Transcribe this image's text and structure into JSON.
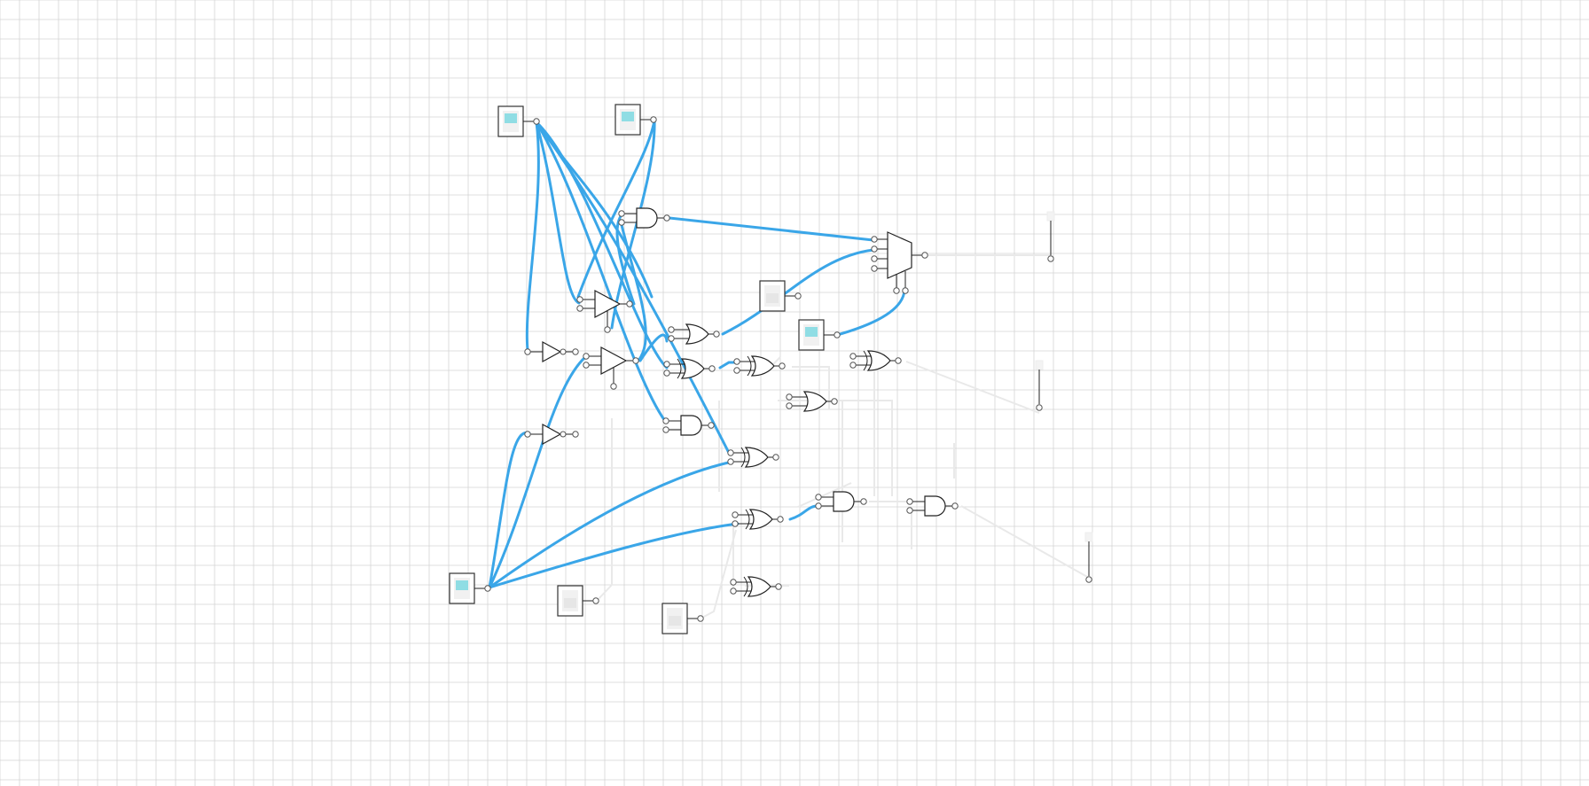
{
  "canvas": {
    "grid": true,
    "background": "#ffffff",
    "grid_color": "#d4d4d4"
  },
  "colors": {
    "wire_active": "#3aa6e8",
    "wire_inactive": "#e9e9e9",
    "switch_on": "#8fdde4",
    "switch_off": "#e6e6e6",
    "gate_stroke": "#222222"
  },
  "switches": [
    {
      "id": "s1",
      "state": "on"
    },
    {
      "id": "s2",
      "state": "on"
    },
    {
      "id": "s3",
      "state": "off"
    },
    {
      "id": "s4",
      "state": "on"
    },
    {
      "id": "s5",
      "state": "on"
    },
    {
      "id": "s6",
      "state": "off"
    },
    {
      "id": "s7",
      "state": "off"
    }
  ],
  "gates": [
    {
      "id": "and1",
      "type": "and"
    },
    {
      "id": "tbuf1",
      "type": "tristate-buffer"
    },
    {
      "id": "tbuf2",
      "type": "tristate-buffer"
    },
    {
      "id": "not1",
      "type": "not"
    },
    {
      "id": "not2",
      "type": "not"
    },
    {
      "id": "or1",
      "type": "or"
    },
    {
      "id": "xor1",
      "type": "xor"
    },
    {
      "id": "xor2",
      "type": "xor"
    },
    {
      "id": "and2",
      "type": "and"
    },
    {
      "id": "or2",
      "type": "or"
    },
    {
      "id": "xor3",
      "type": "xor"
    },
    {
      "id": "xor4",
      "type": "xor"
    },
    {
      "id": "and3",
      "type": "and"
    },
    {
      "id": "xor5",
      "type": "xor"
    },
    {
      "id": "xor6",
      "type": "xor"
    },
    {
      "id": "and4",
      "type": "and"
    },
    {
      "id": "mux1",
      "type": "multiplexer"
    }
  ],
  "outputs": [
    {
      "id": "led1",
      "state": "off"
    },
    {
      "id": "led2",
      "state": "off"
    },
    {
      "id": "led3",
      "state": "off"
    }
  ]
}
